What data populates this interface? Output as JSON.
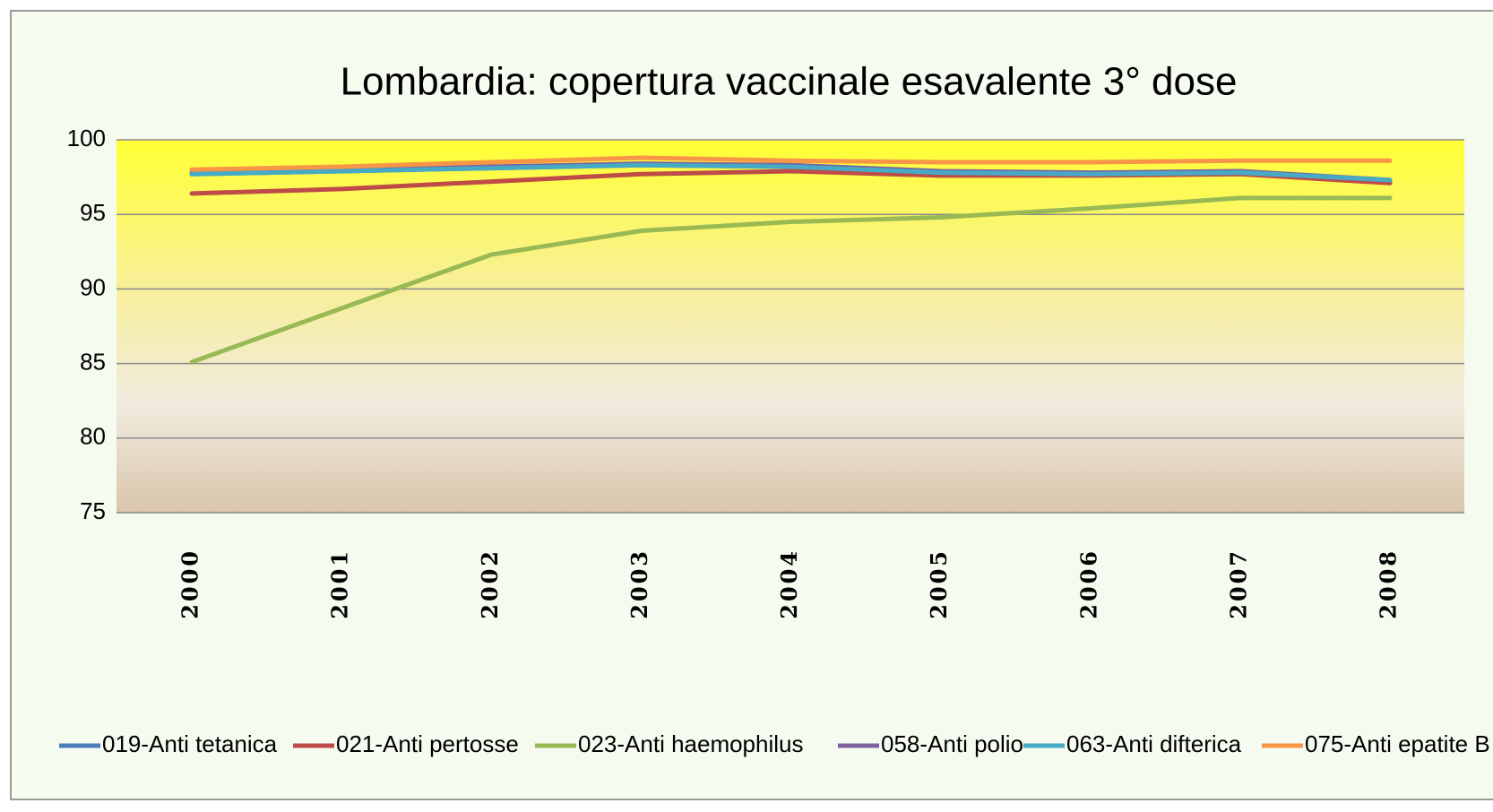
{
  "chart_data": {
    "type": "line",
    "title": "Lombardia: copertura vaccinale esavalente 3° dose",
    "categories": [
      "2000",
      "2001",
      "2002",
      "2003",
      "2004",
      "2005",
      "2006",
      "2007",
      "2008"
    ],
    "series": [
      {
        "name": "019-Anti tetanica",
        "color": "#4a7ebb",
        "values": [
          97.7,
          97.9,
          98.1,
          98.3,
          98.2,
          97.8,
          97.7,
          97.8,
          97.2
        ]
      },
      {
        "name": "021-Anti pertosse",
        "color": "#be4b48",
        "values": [
          96.4,
          96.7,
          97.2,
          97.7,
          97.9,
          97.6,
          97.6,
          97.7,
          97.1
        ]
      },
      {
        "name": "023-Anti haemophilus",
        "color": "#98b954",
        "values": [
          85.1,
          88.7,
          92.3,
          93.9,
          94.5,
          94.8,
          95.4,
          96.1,
          96.1
        ]
      },
      {
        "name": "058-Anti polio",
        "color": "#7d60a0",
        "values": [
          97.8,
          98.0,
          98.2,
          98.4,
          98.3,
          97.9,
          97.8,
          97.9,
          97.3
        ]
      },
      {
        "name": "063-Anti difterica",
        "color": "#46aac5",
        "values": [
          97.7,
          97.9,
          98.1,
          98.3,
          98.2,
          97.8,
          97.7,
          97.8,
          97.3
        ]
      },
      {
        "name": "075-Anti epatite B",
        "color": "#f79646",
        "values": [
          98.0,
          98.2,
          98.5,
          98.8,
          98.6,
          98.5,
          98.5,
          98.6,
          98.6
        ]
      }
    ],
    "ylim": [
      75,
      100
    ],
    "yticks": [
      75,
      80,
      85,
      90,
      95,
      100
    ],
    "grid": true,
    "legend": "bottom"
  }
}
